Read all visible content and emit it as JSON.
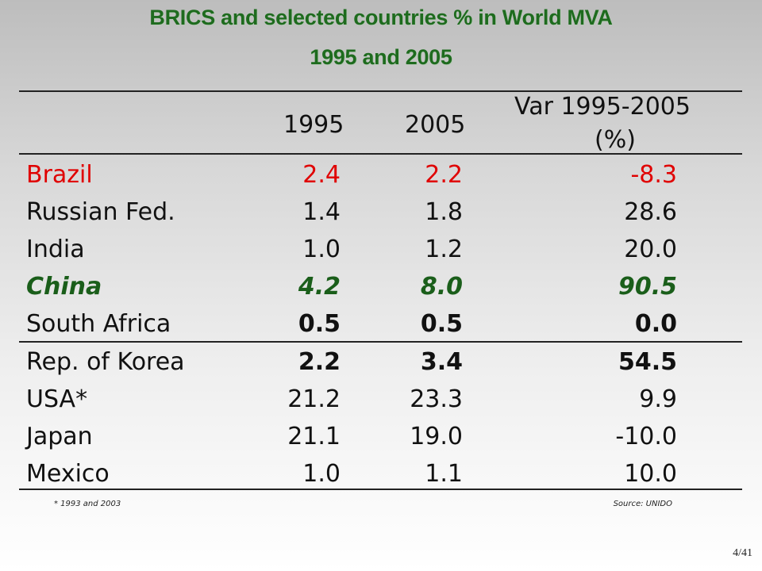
{
  "title_line1": "BRICS and selected countries % in World MVA",
  "title_line2": "1995 and 2005",
  "table": {
    "headers": {
      "c1995": "1995",
      "c2005": "2005",
      "var_line1": "Var 1995-2005",
      "var_line2": "(%)"
    },
    "rows": [
      {
        "country": "Brazil",
        "v1995": "2.4",
        "v2005": "2.2",
        "var": "-8.3"
      },
      {
        "country": "Russian Fed.",
        "v1995": "1.4",
        "v2005": "1.8",
        "var": "28.6"
      },
      {
        "country": "India",
        "v1995": "1.0",
        "v2005": "1.2",
        "var": "20.0"
      },
      {
        "country": "China",
        "v1995": "4.2",
        "v2005": "8.0",
        "var": "90.5"
      },
      {
        "country": "South Africa",
        "v1995": "0.5",
        "v2005": "0.5",
        "var": "0.0"
      },
      {
        "country": "Rep. of Korea",
        "v1995": "2.2",
        "v2005": "3.4",
        "var": "54.5"
      },
      {
        "country": "USA*",
        "v1995": "21.2",
        "v2005": "23.3",
        "var": "9.9"
      },
      {
        "country": "Japan",
        "v1995": "21.1",
        "v2005": "19.0",
        "var": "-10.0"
      },
      {
        "country": "Mexico",
        "v1995": "1.0",
        "v2005": "1.1",
        "var": "10.0"
      }
    ]
  },
  "footnote": "* 1993 and 2003",
  "source": "Source: UNIDO",
  "page_number": "4/41",
  "colors": {
    "title": "#1e6b1e",
    "brazil": "#e00000",
    "china": "#1a5e1a"
  }
}
